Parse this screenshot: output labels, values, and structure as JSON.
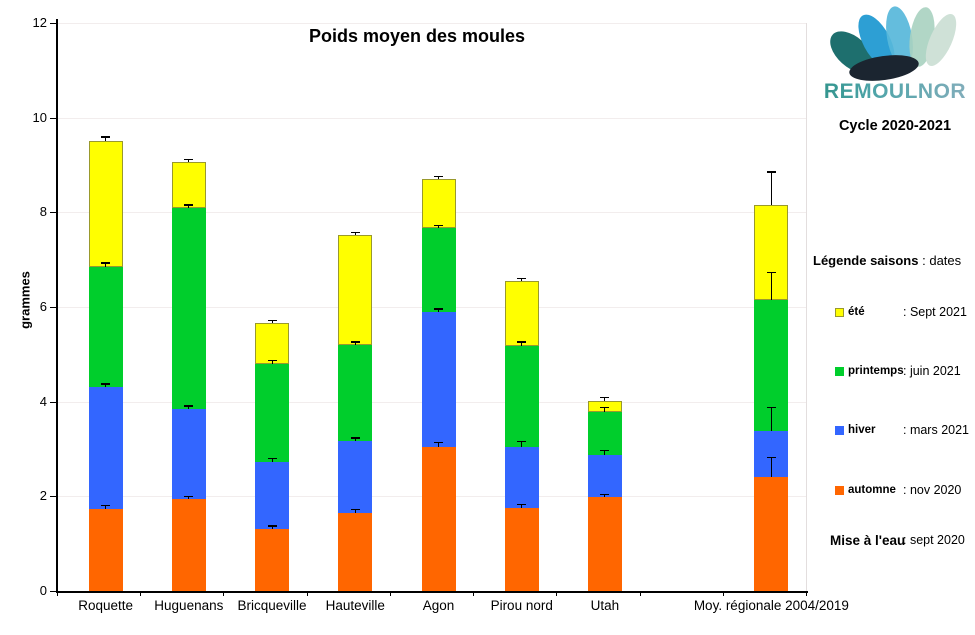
{
  "logo": {
    "wordmark": "REMOULNOR",
    "cycle_label": "Cycle 2020-2021"
  },
  "colors": {
    "automne": "#FF6600",
    "hiver": "#3366FF",
    "printemps": "#00CE2C",
    "ete": "#FFFF00",
    "ete_border": "#99992D",
    "grid": "#F2EDED",
    "axis": "#000000",
    "logo_teal_dark": "#1E6F6E",
    "logo_blue": "#2D9FD4",
    "logo_pale_green": "#A9D1C0",
    "logo_shell_dark": "#1B2530",
    "wordmark_teal": "#3B9EA0"
  },
  "legend": {
    "header_label": "Légende saisons",
    "header_sep": ":",
    "header_value": "dates",
    "items": [
      {
        "key": "ete",
        "label": "été",
        "date": ": Sept 2021"
      },
      {
        "key": "printemps",
        "label": "printemps",
        "date": ":  juin 2021"
      },
      {
        "key": "hiver",
        "label": "hiver",
        "date": ": mars 2021"
      },
      {
        "key": "automne",
        "label": "automne",
        "date": ": nov 2020"
      }
    ],
    "footer": {
      "label": "Mise à l'eau",
      "date": ": sept 2020"
    }
  },
  "chart_data": {
    "type": "bar",
    "subtype": "stacked",
    "title": "Poids moyen des moules",
    "xlabel": "",
    "ylabel": "grammes",
    "ylim": [
      0,
      12
    ],
    "ytick_step": 2,
    "grid": true,
    "categories": [
      "Roquette",
      "Huguenans",
      "Bricqueville",
      "Hauteville",
      "Agon",
      "Pirou nord",
      "Utah",
      "Moy. régionale 2004/2019"
    ],
    "gap_before_last": true,
    "series": [
      {
        "name": "automne",
        "color_key": "automne",
        "values": [
          1.73,
          1.94,
          1.31,
          1.65,
          3.05,
          1.76,
          1.98,
          2.4
        ]
      },
      {
        "name": "hiver",
        "color_key": "hiver",
        "values": [
          2.57,
          1.91,
          1.42,
          1.52,
          2.85,
          1.29,
          0.9,
          0.98
        ]
      },
      {
        "name": "printemps",
        "color_key": "printemps",
        "values": [
          2.55,
          4.25,
          2.07,
          2.03,
          1.77,
          2.13,
          0.91,
          2.77
        ]
      },
      {
        "name": "été",
        "color_key": "ete",
        "values": [
          2.65,
          0.96,
          0.86,
          2.32,
          1.04,
          1.37,
          0.23,
          2.0
        ]
      }
    ],
    "cumulative_tops": [
      [
        1.73,
        4.3,
        6.85,
        9.5
      ],
      [
        1.94,
        3.85,
        8.1,
        9.06
      ],
      [
        1.31,
        2.73,
        4.8,
        5.66
      ],
      [
        1.65,
        3.17,
        5.2,
        7.52
      ],
      [
        3.05,
        5.9,
        7.67,
        8.71
      ],
      [
        1.76,
        3.05,
        5.18,
        6.55
      ],
      [
        1.98,
        2.88,
        3.79,
        4.02
      ],
      [
        2.4,
        3.38,
        6.15,
        8.15
      ]
    ],
    "error_up": [
      [
        0.07,
        0.07,
        0.07,
        0.09
      ],
      [
        0.05,
        0.05,
        0.05,
        0.05
      ],
      [
        0.06,
        0.06,
        0.06,
        0.05
      ],
      [
        0.07,
        0.06,
        0.06,
        0.05
      ],
      [
        0.08,
        0.05,
        0.05,
        0.04
      ],
      [
        0.06,
        0.1,
        0.08,
        0.05
      ],
      [
        0.05,
        0.08,
        0.08,
        0.06
      ],
      [
        0.42,
        0.49,
        0.57,
        0.7
      ]
    ],
    "legend_position": "right"
  }
}
